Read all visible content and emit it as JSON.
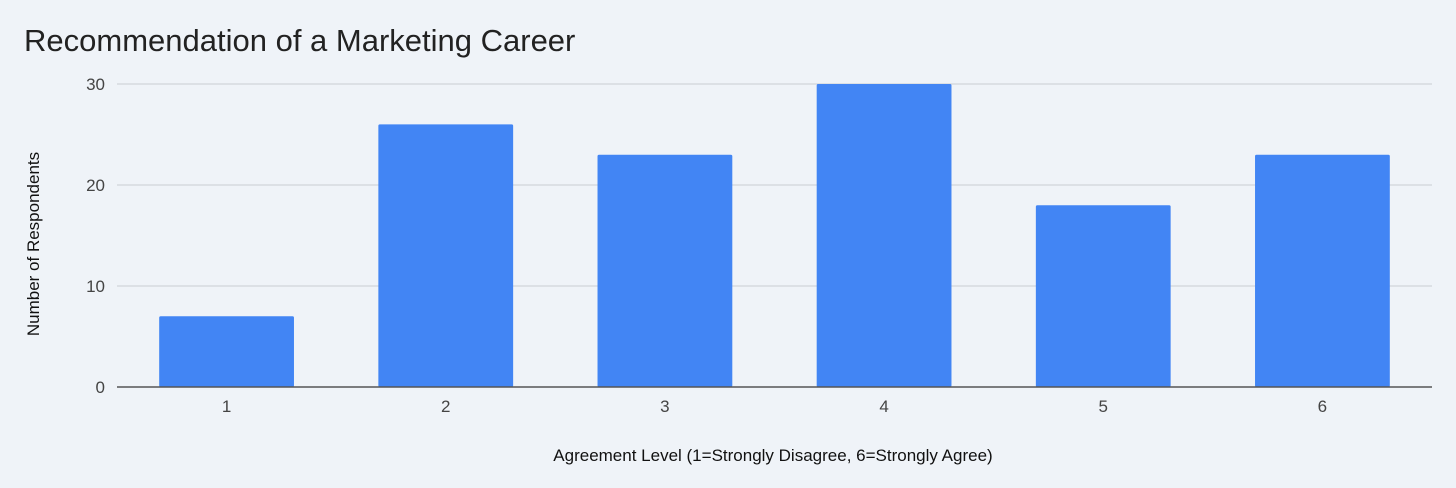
{
  "chart_data": {
    "type": "bar",
    "title": "Recommendation of a Marketing Career",
    "xlabel": "Agreement Level (1=Strongly Disagree, 6=Strongly Agree)",
    "ylabel": "Number of Respondents",
    "categories": [
      "1",
      "2",
      "3",
      "4",
      "5",
      "6"
    ],
    "values": [
      7,
      26,
      23,
      30,
      18,
      23
    ],
    "ylim": [
      0,
      30
    ],
    "yticks": [
      0,
      10,
      20,
      30
    ],
    "grid": true,
    "legend": "none",
    "colors": {
      "bar": "#4285f4",
      "background": "#eff3f8",
      "gridline": "#c8ccd2",
      "baseline": "#555555"
    }
  }
}
